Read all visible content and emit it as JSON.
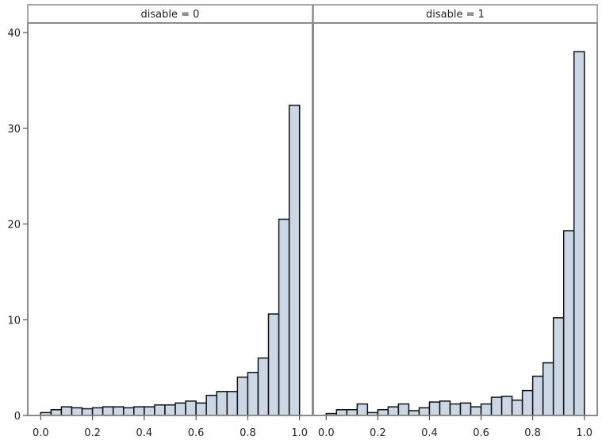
{
  "chart_data": {
    "type": "bar",
    "title": "",
    "xlabel": "",
    "ylabel": "",
    "ylim": [
      0,
      41
    ],
    "xlim": [
      -0.05,
      1.05
    ],
    "bin_width": 0.04,
    "grid": false,
    "bar_fill": "#ccd7e6",
    "bar_stroke": "#111111",
    "frame_color": "#8c8c8c",
    "y_ticks": [
      "0",
      "10",
      "20",
      "30",
      "40"
    ],
    "x_ticks": [
      "0.0",
      "0.2",
      "0.4",
      "0.6",
      "0.8",
      "1.0"
    ],
    "panels": [
      {
        "label": "disable = 0",
        "bin_centers": [
          0.02,
          0.06,
          0.1,
          0.14,
          0.18,
          0.22,
          0.26,
          0.3,
          0.34,
          0.38,
          0.42,
          0.46,
          0.5,
          0.54,
          0.58,
          0.62,
          0.66,
          0.7,
          0.74,
          0.78,
          0.82,
          0.86,
          0.9,
          0.94,
          0.98
        ],
        "values": [
          0.3,
          0.6,
          0.9,
          0.8,
          0.7,
          0.8,
          0.9,
          0.9,
          0.8,
          0.9,
          0.9,
          1.1,
          1.1,
          1.3,
          1.5,
          1.3,
          2.1,
          2.5,
          2.5,
          4.0,
          4.5,
          6.0,
          10.6,
          20.5,
          32.4
        ]
      },
      {
        "label": "disable = 1",
        "bin_centers": [
          0.02,
          0.06,
          0.1,
          0.14,
          0.18,
          0.22,
          0.26,
          0.3,
          0.34,
          0.38,
          0.42,
          0.46,
          0.5,
          0.54,
          0.58,
          0.62,
          0.66,
          0.7,
          0.74,
          0.78,
          0.82,
          0.86,
          0.9,
          0.94,
          0.98
        ],
        "values": [
          0.2,
          0.6,
          0.6,
          1.2,
          0.3,
          0.6,
          0.9,
          1.2,
          0.5,
          0.8,
          1.4,
          1.5,
          1.2,
          1.3,
          0.9,
          1.2,
          1.9,
          2.0,
          1.6,
          2.6,
          4.1,
          5.5,
          10.2,
          19.3,
          38.0
        ]
      }
    ]
  }
}
